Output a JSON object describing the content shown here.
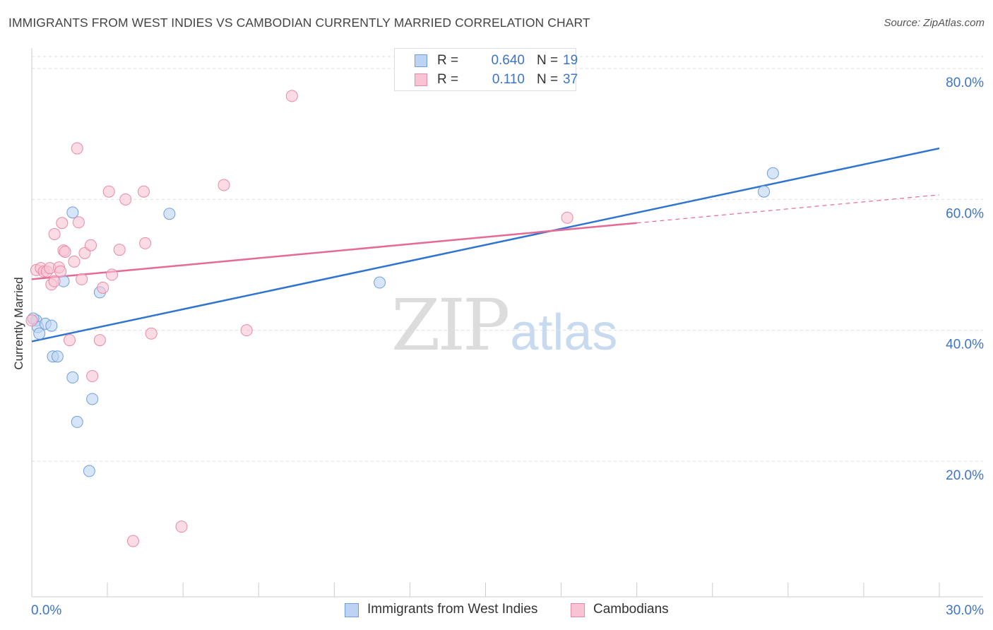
{
  "title": "IMMIGRANTS FROM WEST INDIES VS CAMBODIAN CURRENTLY MARRIED CORRELATION CHART",
  "source": "Source: ZipAtlas.com",
  "watermark": {
    "zip": "ZIP",
    "atlas": "atlas"
  },
  "colors": {
    "blue_fill": "#bcd3f3",
    "blue_stroke": "#6f9fdb",
    "blue_line": "#2e74d0",
    "pink_fill": "#f8c3d2",
    "pink_stroke": "#e88aa5",
    "pink_line": "#e56a96",
    "tick_label": "#3b74c9",
    "grid": "#dddddd"
  },
  "legend": {
    "series1": {
      "r_label": "R =",
      "r_value": "0.640",
      "n_label": "N =",
      "n_value": "19"
    },
    "series2": {
      "r_label": "R =",
      "r_value": "0.110",
      "n_label": "N =",
      "n_value": "37"
    }
  },
  "chart_data": {
    "type": "scatter",
    "title": "IMMIGRANTS FROM WEST INDIES VS CAMBODIAN CURRENTLY MARRIED CORRELATION CHART",
    "xlabel": "",
    "ylabel": "Currently Married",
    "xlim": [
      0,
      30
    ],
    "ylim": [
      0,
      85
    ],
    "x_tick_labels": [
      {
        "value": 0,
        "label": "0.0%"
      },
      {
        "value": 30,
        "label": "30.0%"
      }
    ],
    "y_tick_labels": [
      {
        "value": 20,
        "label": "20.0%"
      },
      {
        "value": 40,
        "label": "40.0%"
      },
      {
        "value": 60,
        "label": "60.0%"
      },
      {
        "value": 80,
        "label": "80.0%"
      }
    ],
    "series": [
      {
        "name": "Immigrants from West Indies",
        "color": "blue",
        "trend": {
          "x": [
            0,
            30
          ],
          "y": [
            38.3,
            67.8
          ],
          "dashed_from": null
        },
        "points": [
          {
            "x": 0.15,
            "y": 41.5
          },
          {
            "x": 0.2,
            "y": 40.5
          },
          {
            "x": 0.25,
            "y": 39.5
          },
          {
            "x": 0.45,
            "y": 41.0
          },
          {
            "x": 0.65,
            "y": 40.7
          },
          {
            "x": 0.7,
            "y": 36.0
          },
          {
            "x": 0.85,
            "y": 36.0
          },
          {
            "x": 1.05,
            "y": 47.5
          },
          {
            "x": 1.35,
            "y": 58.0
          },
          {
            "x": 1.35,
            "y": 32.8
          },
          {
            "x": 1.5,
            "y": 26.0
          },
          {
            "x": 1.9,
            "y": 18.5
          },
          {
            "x": 2.0,
            "y": 29.5
          },
          {
            "x": 2.25,
            "y": 45.8
          },
          {
            "x": 4.55,
            "y": 57.8
          },
          {
            "x": 11.5,
            "y": 47.3
          },
          {
            "x": 24.5,
            "y": 64.0
          },
          {
            "x": 24.2,
            "y": 61.2
          },
          {
            "x": 0.05,
            "y": 41.8
          }
        ]
      },
      {
        "name": "Cambodians",
        "color": "pink",
        "trend": {
          "x": [
            0,
            30
          ],
          "y": [
            47.8,
            60.7
          ],
          "dashed_from": 20.0
        },
        "points": [
          {
            "x": 0.0,
            "y": 41.5
          },
          {
            "x": 0.15,
            "y": 49.2
          },
          {
            "x": 0.3,
            "y": 49.5
          },
          {
            "x": 0.4,
            "y": 49.0
          },
          {
            "x": 0.5,
            "y": 49.0
          },
          {
            "x": 0.6,
            "y": 49.5
          },
          {
            "x": 0.65,
            "y": 47.0
          },
          {
            "x": 0.75,
            "y": 54.7
          },
          {
            "x": 0.75,
            "y": 47.5
          },
          {
            "x": 0.9,
            "y": 49.6
          },
          {
            "x": 0.95,
            "y": 49.0
          },
          {
            "x": 1.0,
            "y": 56.4
          },
          {
            "x": 1.05,
            "y": 52.2
          },
          {
            "x": 1.1,
            "y": 52.0
          },
          {
            "x": 1.25,
            "y": 38.5
          },
          {
            "x": 1.4,
            "y": 50.5
          },
          {
            "x": 1.5,
            "y": 67.8
          },
          {
            "x": 1.55,
            "y": 56.5
          },
          {
            "x": 1.65,
            "y": 47.8
          },
          {
            "x": 1.75,
            "y": 51.8
          },
          {
            "x": 1.95,
            "y": 53.0
          },
          {
            "x": 2.0,
            "y": 33.0
          },
          {
            "x": 2.25,
            "y": 38.5
          },
          {
            "x": 2.35,
            "y": 46.5
          },
          {
            "x": 2.55,
            "y": 61.2
          },
          {
            "x": 2.65,
            "y": 48.5
          },
          {
            "x": 2.9,
            "y": 52.3
          },
          {
            "x": 3.1,
            "y": 60.0
          },
          {
            "x": 3.35,
            "y": 7.8
          },
          {
            "x": 3.7,
            "y": 61.2
          },
          {
            "x": 3.75,
            "y": 53.3
          },
          {
            "x": 3.95,
            "y": 39.5
          },
          {
            "x": 4.95,
            "y": 10.0
          },
          {
            "x": 6.35,
            "y": 62.2
          },
          {
            "x": 7.1,
            "y": 40.0
          },
          {
            "x": 8.6,
            "y": 75.8
          },
          {
            "x": 17.7,
            "y": 57.2
          }
        ]
      }
    ],
    "legend_position": "top-center"
  },
  "bottom_legend": [
    "Immigrants from West Indies",
    "Cambodians"
  ]
}
